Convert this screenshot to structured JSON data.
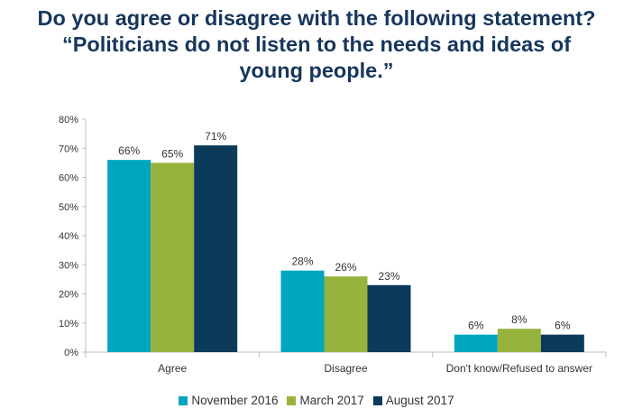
{
  "title": {
    "line1": "Do you agree or disagree with the following statement?",
    "line2": "“Politicians do not listen to the needs and ideas of",
    "line3": "young people.”"
  },
  "chart_data": {
    "type": "bar",
    "title": "Do you agree or disagree with the following statement? “Politicians do not listen to the needs and ideas of young people.”",
    "categories": [
      "Agree",
      "Disagree",
      "Don't know/Refused to answer"
    ],
    "series": [
      {
        "name": "November 2016",
        "color": "#00a6c0",
        "values": [
          66,
          28,
          6
        ]
      },
      {
        "name": "March 2017",
        "color": "#97b33e",
        "values": [
          65,
          26,
          8
        ]
      },
      {
        "name": "August 2017",
        "color": "#0c3a5b",
        "values": [
          71,
          23,
          6
        ]
      }
    ],
    "ylim": [
      0,
      80
    ],
    "yticks": [
      "0%",
      "10%",
      "20%",
      "30%",
      "40%",
      "50%",
      "60%",
      "70%",
      "80%"
    ],
    "value_suffix": "%",
    "grid": false,
    "legend_position": "bottom"
  }
}
